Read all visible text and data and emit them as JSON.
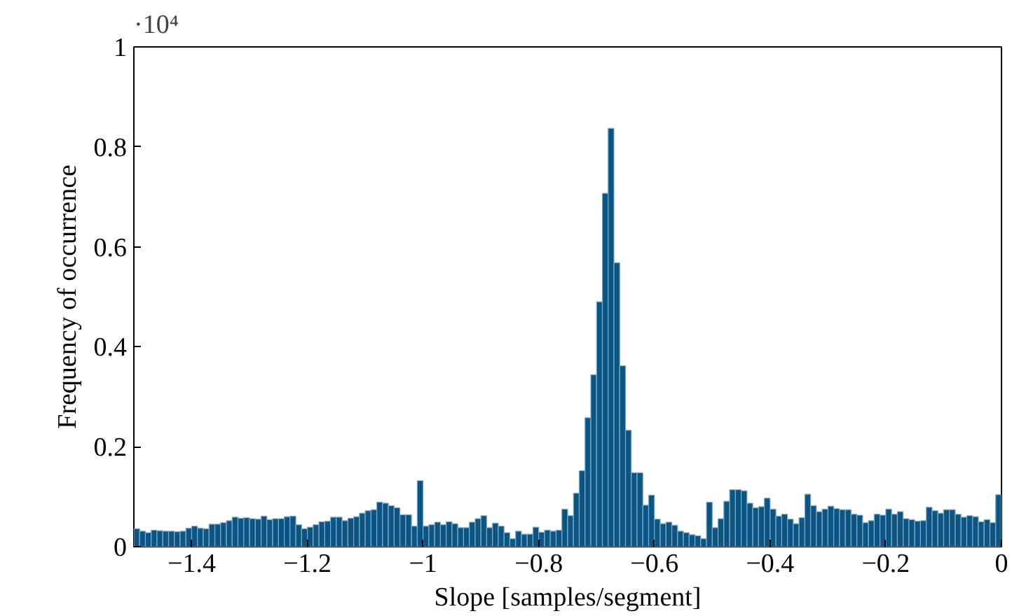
{
  "chart_data": {
    "type": "histogram",
    "xlabel": "Slope [samples/segment]",
    "ylabel": "Frequency of occurrence",
    "annotations": [
      "·10⁴"
    ],
    "bins": [
      -1.5,
      -1.49,
      -1.48,
      -1.47,
      -1.46,
      -1.45,
      -1.44,
      -1.43,
      -1.42,
      -1.41,
      -1.4,
      -1.39,
      -1.38,
      -1.37,
      -1.36,
      -1.35,
      -1.34,
      -1.33,
      -1.32,
      -1.31,
      -1.3,
      -1.29,
      -1.28,
      -1.27,
      -1.26,
      -1.25,
      -1.24,
      -1.23,
      -1.22,
      -1.21,
      -1.2,
      -1.19,
      -1.18,
      -1.17,
      -1.16,
      -1.15,
      -1.14,
      -1.13,
      -1.12,
      -1.11,
      -1.1,
      -1.09,
      -1.08,
      -1.07,
      -1.06,
      -1.05,
      -1.04,
      -1.03,
      -1.02,
      -1.01,
      -1.0,
      -0.99,
      -0.98,
      -0.97,
      -0.96,
      -0.95,
      -0.94,
      -0.93,
      -0.92,
      -0.91,
      -0.9,
      -0.89,
      -0.88,
      -0.87,
      -0.86,
      -0.85,
      -0.84,
      -0.83,
      -0.82,
      -0.81,
      -0.8,
      -0.79,
      -0.78,
      -0.77,
      -0.76,
      -0.75,
      -0.74,
      -0.73,
      -0.72,
      -0.71,
      -0.7,
      -0.69,
      -0.68,
      -0.67,
      -0.66,
      -0.65,
      -0.64,
      -0.63,
      -0.62,
      -0.61,
      -0.6,
      -0.59,
      -0.58,
      -0.57,
      -0.56,
      -0.55,
      -0.54,
      -0.53,
      -0.52,
      -0.51,
      -0.5,
      -0.49,
      -0.48,
      -0.47,
      -0.46,
      -0.45,
      -0.44,
      -0.43,
      -0.42,
      -0.41,
      -0.4,
      -0.39,
      -0.38,
      -0.37,
      -0.36,
      -0.35,
      -0.34,
      -0.33,
      -0.32,
      -0.31,
      -0.3,
      -0.29,
      -0.28,
      -0.27,
      -0.26,
      -0.25,
      -0.24,
      -0.23,
      -0.22,
      -0.21,
      -0.2,
      -0.19,
      -0.18,
      -0.17,
      -0.16,
      -0.15,
      -0.14,
      -0.13,
      -0.12,
      -0.11,
      -0.1,
      -0.09,
      -0.08,
      -0.07,
      -0.06,
      -0.05,
      -0.04,
      -0.03,
      -0.02,
      -0.01,
      0.0
    ],
    "values": [
      0.036,
      0.031,
      0.028,
      0.033,
      0.032,
      0.031,
      0.031,
      0.03,
      0.031,
      0.037,
      0.041,
      0.037,
      0.036,
      0.045,
      0.045,
      0.048,
      0.052,
      0.059,
      0.057,
      0.058,
      0.056,
      0.055,
      0.061,
      0.054,
      0.056,
      0.056,
      0.06,
      0.061,
      0.044,
      0.036,
      0.039,
      0.044,
      0.05,
      0.051,
      0.059,
      0.059,
      0.052,
      0.057,
      0.06,
      0.067,
      0.072,
      0.074,
      0.089,
      0.087,
      0.082,
      0.078,
      0.064,
      0.064,
      0.041,
      0.132,
      0.041,
      0.044,
      0.049,
      0.044,
      0.05,
      0.046,
      0.038,
      0.038,
      0.049,
      0.056,
      0.062,
      0.038,
      0.047,
      0.041,
      0.028,
      0.016,
      0.031,
      0.025,
      0.025,
      0.039,
      0.029,
      0.033,
      0.031,
      0.033,
      0.075,
      0.062,
      0.107,
      0.152,
      0.258,
      0.344,
      0.49,
      0.707,
      0.837,
      0.568,
      0.362,
      0.233,
      0.148,
      0.148,
      0.083,
      0.103,
      0.055,
      0.046,
      0.049,
      0.043,
      0.031,
      0.028,
      0.024,
      0.022,
      0.016,
      0.089,
      0.038,
      0.056,
      0.091,
      0.114,
      0.114,
      0.112,
      0.087,
      0.078,
      0.08,
      0.097,
      0.075,
      0.061,
      0.065,
      0.055,
      0.046,
      0.058,
      0.105,
      0.082,
      0.07,
      0.075,
      0.081,
      0.076,
      0.074,
      0.074,
      0.065,
      0.063,
      0.048,
      0.052,
      0.065,
      0.063,
      0.075,
      0.065,
      0.07,
      0.056,
      0.054,
      0.051,
      0.052,
      0.079,
      0.072,
      0.067,
      0.074,
      0.074,
      0.065,
      0.059,
      0.062,
      0.06,
      0.05,
      0.054,
      0.048,
      0.104
    ],
    "color": "#0b5583",
    "xlim": [
      -1.5,
      0
    ],
    "ylim": [
      0,
      1
    ],
    "xticks": [
      {
        "value": -1.4,
        "label": "−1.4"
      },
      {
        "value": -1.2,
        "label": "−1.2"
      },
      {
        "value": -1,
        "label": "−1"
      },
      {
        "value": -0.8,
        "label": "−0.8"
      },
      {
        "value": -0.6,
        "label": "−0.6"
      },
      {
        "value": -0.4,
        "label": "−0.4"
      },
      {
        "value": -0.2,
        "label": "−0.2"
      },
      0
    ],
    "yticks": [
      0,
      0.2,
      0.4,
      0.6,
      0.8,
      1
    ],
    "grid": false
  }
}
